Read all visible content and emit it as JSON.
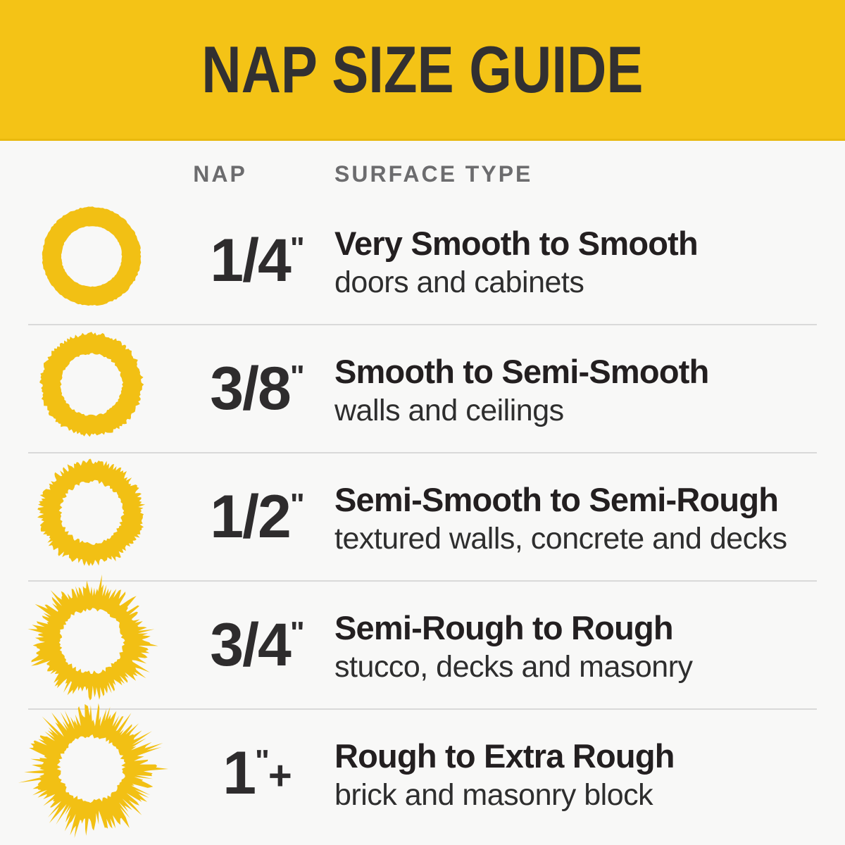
{
  "header": {
    "title": "NAP SIZE GUIDE"
  },
  "columns": {
    "nap": "NAP",
    "surface_type": "SURFACE TYPE"
  },
  "rows": [
    {
      "nap": "1/4",
      "inch_mark": "\"",
      "nap_suffix": "",
      "title": "Very Smooth to Smooth",
      "subtitle": "doors and cabinets",
      "icon": {
        "name": "roller-nap-ring-smooth",
        "roughness": 0
      }
    },
    {
      "nap": "3/8",
      "inch_mark": "\"",
      "nap_suffix": "",
      "title": "Smooth to Semi-Smooth",
      "subtitle": "walls and ceilings",
      "icon": {
        "name": "roller-nap-ring-slightly-textured",
        "roughness": 1
      }
    },
    {
      "nap": "1/2",
      "inch_mark": "\"",
      "nap_suffix": "",
      "title": "Semi-Smooth to Semi-Rough",
      "subtitle": "textured walls, concrete and decks",
      "icon": {
        "name": "roller-nap-ring-textured",
        "roughness": 2
      }
    },
    {
      "nap": "3/4",
      "inch_mark": "\"",
      "nap_suffix": "",
      "title": "Semi-Rough to Rough",
      "subtitle": "stucco, decks and masonry",
      "icon": {
        "name": "roller-nap-ring-fuzzy",
        "roughness": 3
      }
    },
    {
      "nap": "1",
      "inch_mark": "\"",
      "nap_suffix": "+",
      "title": "Rough to Extra Rough",
      "subtitle": "brick and masonry block",
      "icon": {
        "name": "roller-nap-ring-extra-fuzzy",
        "roughness": 4
      }
    }
  ],
  "colors": {
    "banner_yellow": "#F4C316",
    "banner_border": "#E9B90E",
    "ring_yellow": "#F2C014",
    "banner_text": "#323031",
    "column_header_text": "#6C6C6E",
    "nap_text": "#2E2C2D",
    "title_text": "#231F20",
    "subtitle_text": "#2E2E2E",
    "divider": "#D9D9D9",
    "background": "#F8F8F7"
  }
}
